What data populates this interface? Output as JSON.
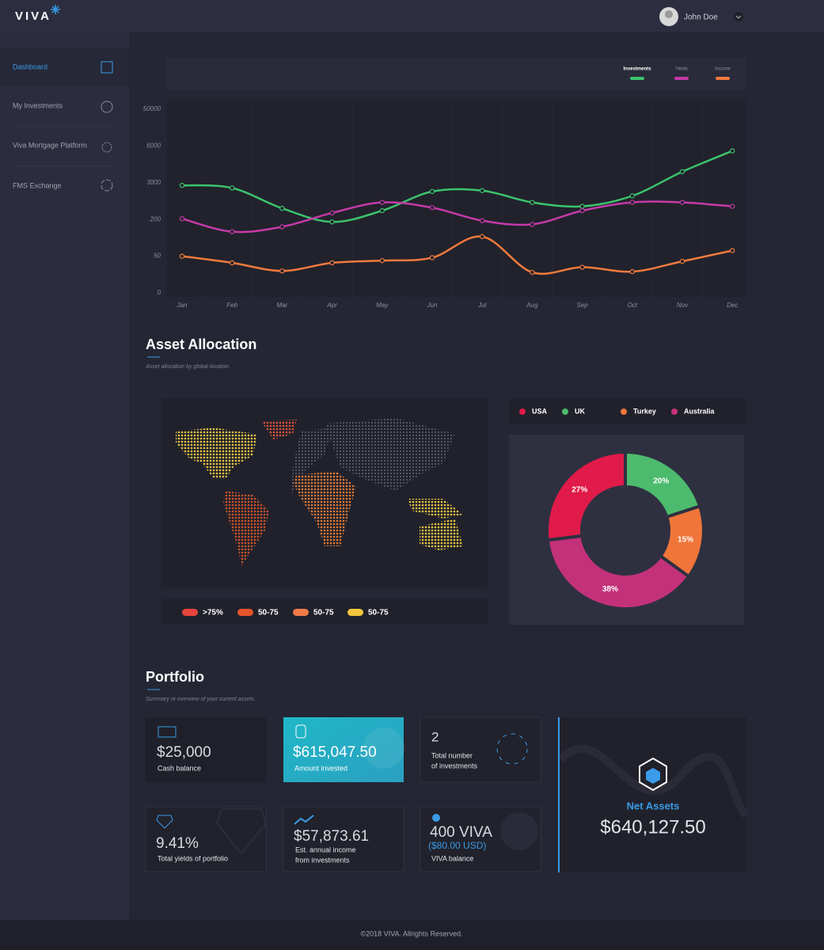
{
  "header": {
    "logo": "VIVA",
    "user": "John Doe"
  },
  "sidebar": {
    "items": [
      "Dashboard",
      "My Investments",
      "Viva Mortgage Platform",
      "FMS Exchange"
    ]
  },
  "sections": {
    "allocation": {
      "title": "Asset Allocation",
      "subtitle": "Asset allocation by global location"
    },
    "portfolio": {
      "title": "Portfolio",
      "subtitle": "Summary or overview of your current assets."
    }
  },
  "map_legend": [
    {
      "label": ">75%",
      "color": "#e8453c"
    },
    {
      "label": "50-75",
      "color": "#e5542a"
    },
    {
      "label": "50-75",
      "color": "#f07a48"
    },
    {
      "label": "50-75",
      "color": "#f2c53c"
    }
  ],
  "portfolio": {
    "cards": [
      {
        "value": "$25,000",
        "lines": [
          "Cash balance"
        ]
      },
      {
        "value": "$615,047.50",
        "lines": [
          "Amount invested"
        ]
      },
      {
        "value": "2",
        "lines": [
          "Total number",
          "of investments"
        ]
      },
      {
        "value": "9.41%",
        "lines": [
          "Total yields of portfolio"
        ]
      },
      {
        "value": "$57,873.61",
        "lines": [
          "Est. annual income",
          "from investments"
        ]
      },
      {
        "value": "400 VIVA",
        "note": "($80.00 USD)",
        "lines": [
          "VIVA balance"
        ]
      }
    ],
    "net_assets": {
      "label": "Net Assets",
      "value": "$640,127.50"
    }
  },
  "footer": "©2018 VIVA. Allrights Reserved.",
  "chart_data": [
    {
      "type": "line",
      "categories": [
        "Jan",
        "Feb",
        "Mar",
        "Apr",
        "May",
        "Jun",
        "Jul",
        "Aug",
        "Sep",
        "Oct",
        "Nov",
        "Dec"
      ],
      "series": [
        {
          "name": "Investments",
          "color": "#3cc36e",
          "values": [
            2800,
            2600,
            1050,
            190,
            870,
            2330,
            2400,
            1500,
            1200,
            2000,
            3900,
            5600
          ]
        },
        {
          "name": "Yields",
          "color": "#c53aa8",
          "values": [
            260,
            150,
            170,
            700,
            1500,
            1100,
            195,
            180,
            870,
            1500,
            1500,
            1200
          ]
        },
        {
          "name": "Income",
          "color": "#f07a3e",
          "values": [
            50,
            41,
            30,
            41,
            44,
            48,
            130,
            28,
            35,
            29,
            43,
            73
          ]
        }
      ],
      "ylim": [
        0,
        50000
      ],
      "yticks": [
        0,
        50,
        200,
        3000,
        6000,
        50000
      ]
    },
    {
      "type": "pie",
      "series": [
        {
          "name": "USA",
          "color": "#e01b49",
          "values": [
            27
          ],
          "value_labels": [
            "27%"
          ]
        },
        {
          "name": "UK",
          "color": "#4dbb6d",
          "values": [
            20
          ],
          "value_labels": [
            "20%"
          ]
        },
        {
          "name": "Turkey",
          "color": "#f07539",
          "values": [
            15
          ],
          "value_labels": [
            "15%"
          ]
        },
        {
          "name": "Australia",
          "color": "#c4317b",
          "values": [
            38
          ],
          "value_labels": [
            "38%"
          ]
        }
      ]
    }
  ]
}
